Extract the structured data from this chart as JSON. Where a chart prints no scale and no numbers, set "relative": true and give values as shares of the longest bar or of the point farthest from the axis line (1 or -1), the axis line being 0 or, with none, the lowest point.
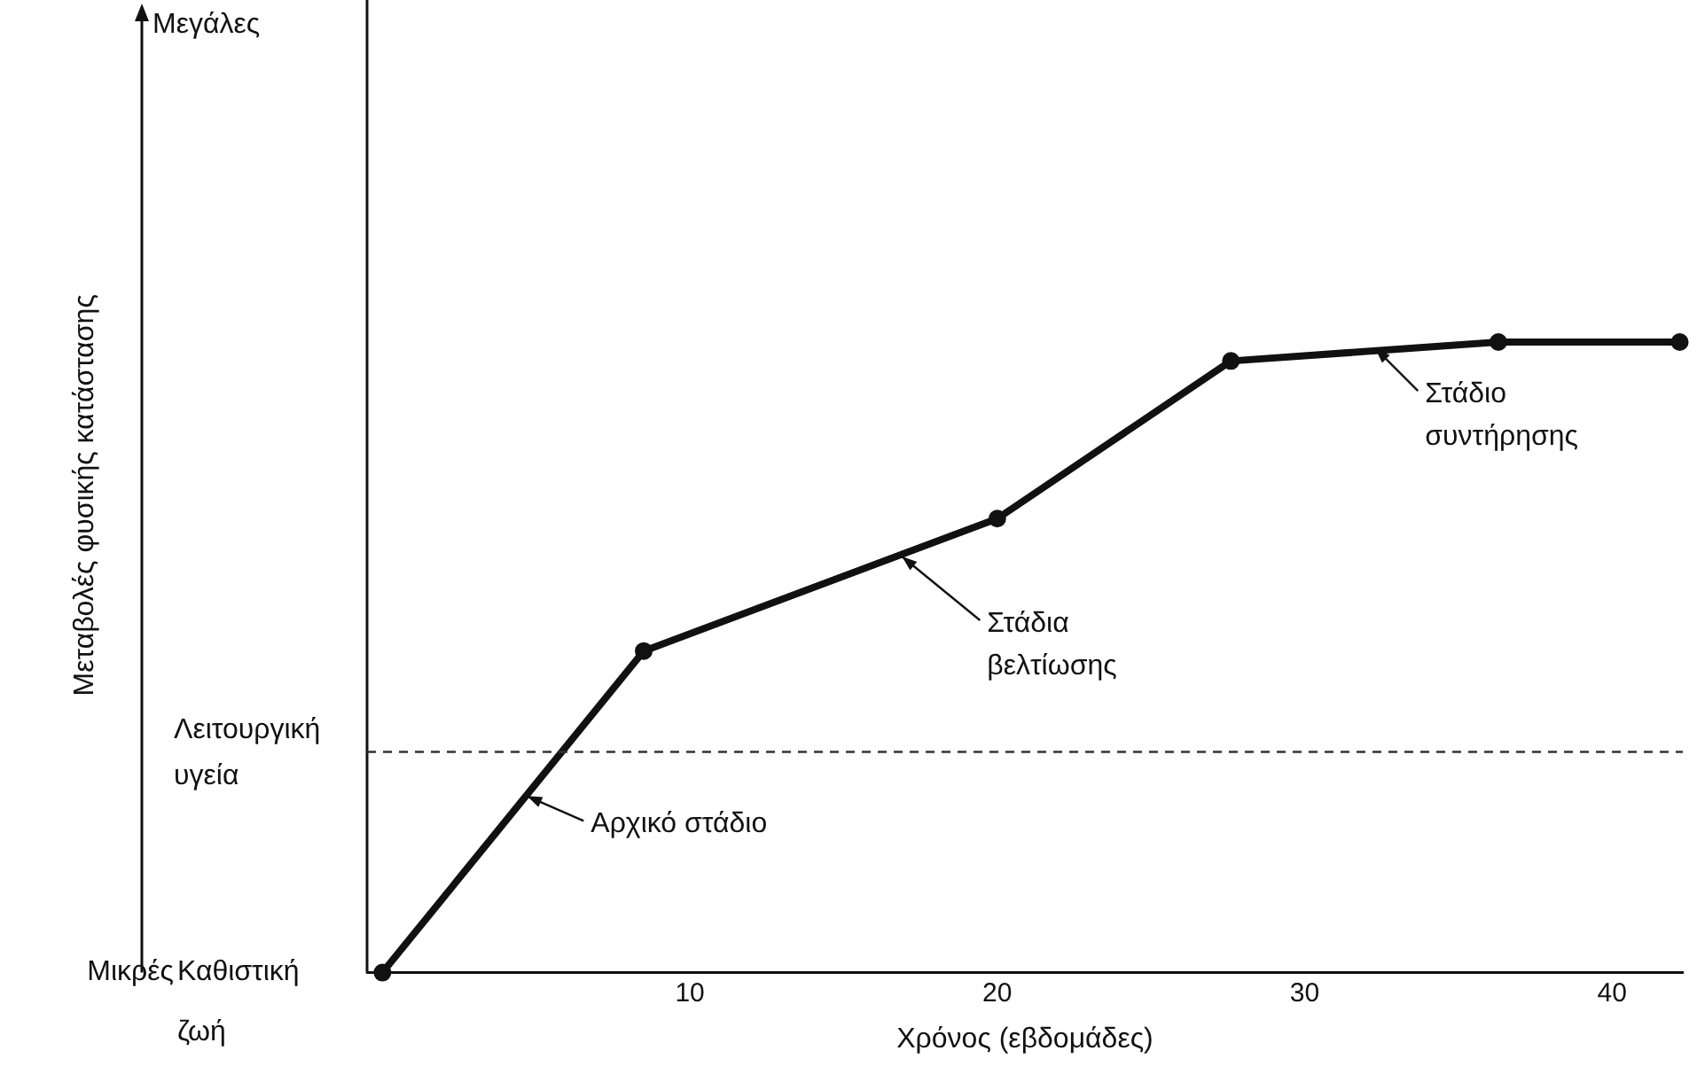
{
  "chart_data": {
    "type": "line",
    "relative": true,
    "xlabel": "Χρόνος (εβδομάδες)",
    "x": [
      0,
      8.5,
      20,
      27.6,
      36.3,
      42.2
    ],
    "series": [
      {
        "color": "#111111",
        "values": [
          0,
          0.51,
          0.72,
          0.97,
          1.0,
          1.0
        ]
      }
    ],
    "xlim": [
      -0.5,
      42.3
    ],
    "xticks": [
      10,
      20,
      30,
      40
    ],
    "marker": "circle",
    "line_style": "solid",
    "grid": false,
    "legend": false,
    "tick_labels": "x",
    "ref_lines": [
      {
        "axis": "y",
        "value": 0.35,
        "label": "Λειτουργική υγεία",
        "line_style": "dashed",
        "color": "#333333"
      }
    ],
    "annotations": [
      "Μεγάλες",
      "Μικρές",
      "Καθιστική ζωή",
      "Μεταβολές φυσικής κατάστασης",
      {
        "text": "Αρχικό στάδιο",
        "x": 4.7,
        "y": 0.28
      },
      {
        "text": "Στάδια βελτίωσης",
        "x": 16.9,
        "y": 0.66
      },
      {
        "text": "Στάδιο συντήρησης",
        "x": 32.3,
        "y": 0.99
      }
    ]
  }
}
